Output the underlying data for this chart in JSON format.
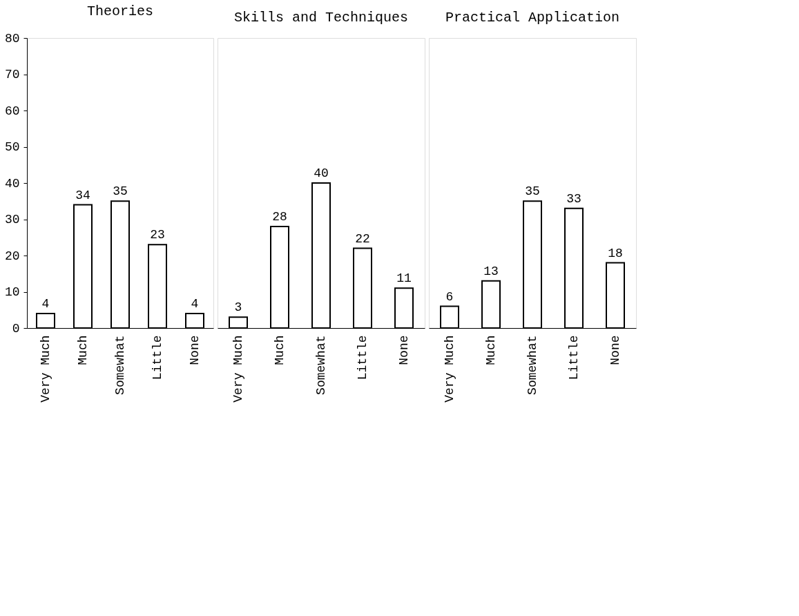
{
  "chart_data": [
    {
      "type": "bar",
      "title": "Theories",
      "categories": [
        "Very Much",
        "Much",
        "Somewhat",
        "Little",
        "None"
      ],
      "values": [
        4,
        34,
        35,
        23,
        4
      ],
      "color": "#ffffff",
      "ylim": [
        0,
        80
      ],
      "yticks": [
        0,
        10,
        20,
        30,
        40,
        50,
        60,
        70,
        80
      ],
      "data_labels": true,
      "grid": false
    },
    {
      "type": "bar",
      "title": "Skills and Techniques",
      "categories": [
        "Very Much",
        "Much",
        "Somewhat",
        "Little",
        "None"
      ],
      "values": [
        3,
        28,
        40,
        22,
        11
      ],
      "color": "#ffffff",
      "ylim": [
        0,
        80
      ],
      "yticks": [
        0,
        10,
        20,
        30,
        40,
        50,
        60,
        70,
        80
      ],
      "data_labels": true,
      "grid": false,
      "tick_labels": "x"
    },
    {
      "type": "bar",
      "title": "Practical Application",
      "categories": [
        "Very Much",
        "Much",
        "Somewhat",
        "Little",
        "None"
      ],
      "values": [
        6,
        13,
        35,
        33,
        18
      ],
      "color": "#ffffff",
      "ylim": [
        0,
        80
      ],
      "yticks": [
        0,
        10,
        20,
        30,
        40,
        50,
        60,
        70,
        80
      ],
      "data_labels": true,
      "grid": false,
      "tick_labels": "x"
    }
  ]
}
